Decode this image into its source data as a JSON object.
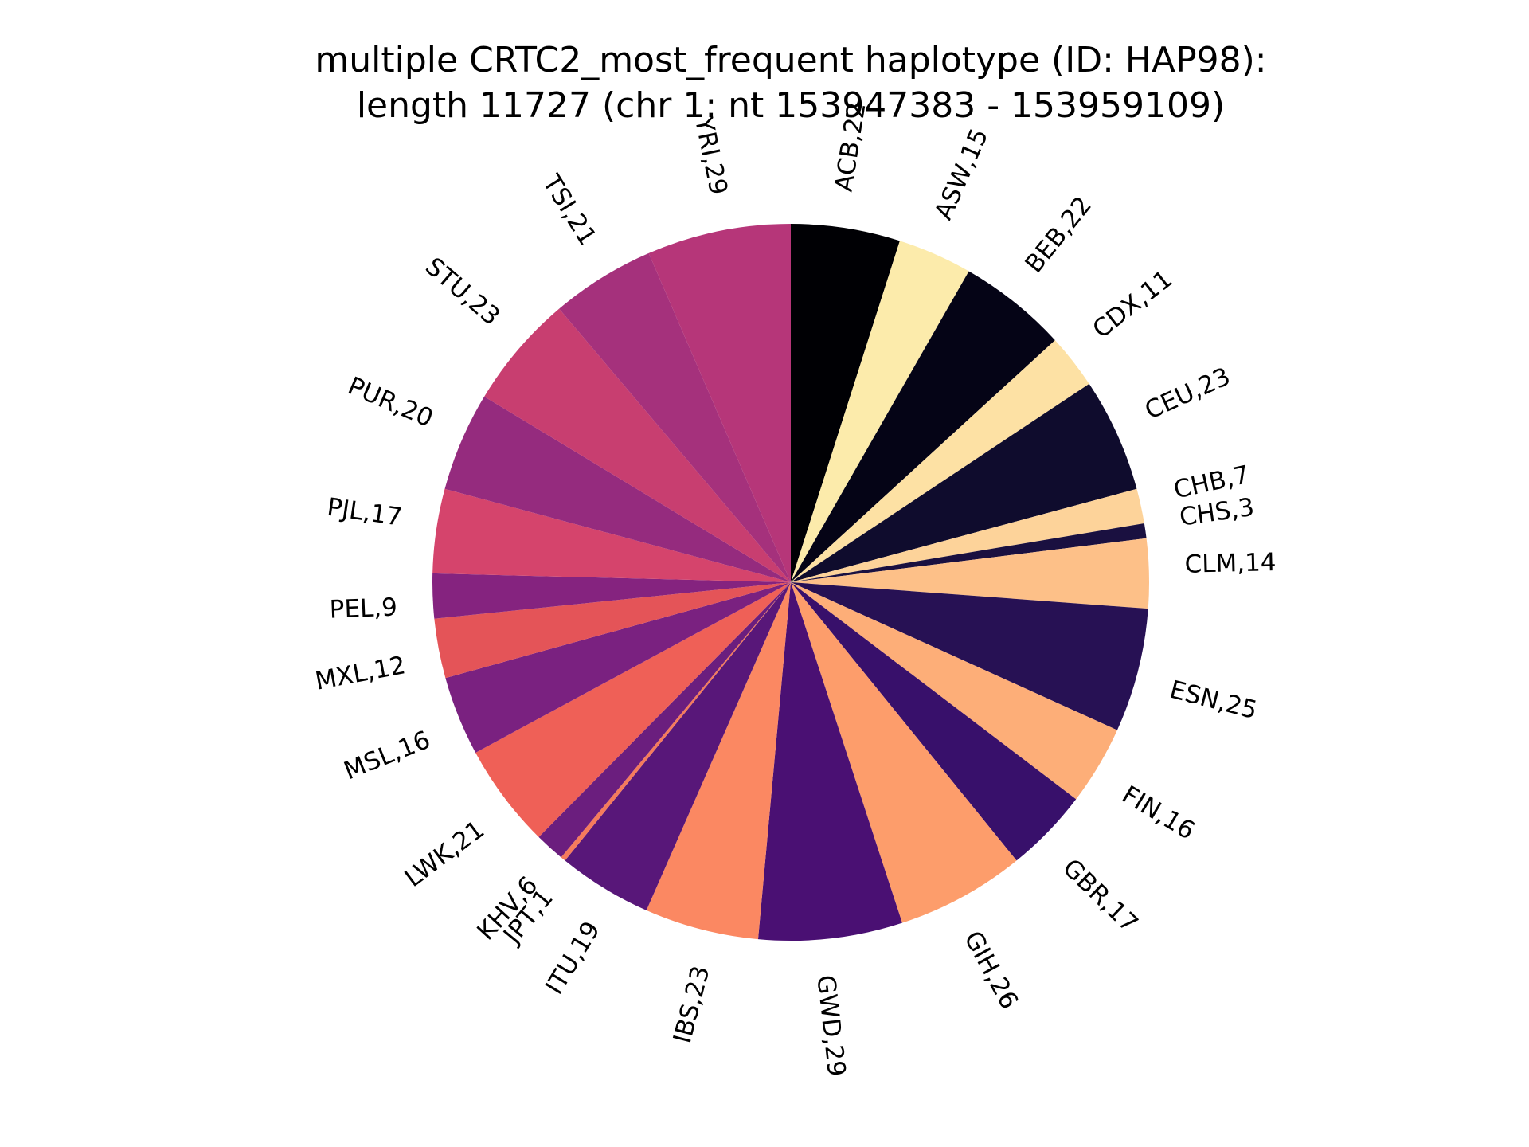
{
  "chart_data": {
    "type": "pie",
    "title": "multiple CRTC2_most_frequent haplotype (ID: HAP98):",
    "subtitle": "length 11727 (chr 1: nt 153947383 - 153959109)",
    "start": "top",
    "direction": "clockwise",
    "slices": [
      {
        "label": "ACB,22",
        "value": 22,
        "color": "#000004"
      },
      {
        "label": "ASW,15",
        "value": 15,
        "color": "#fcebab"
      },
      {
        "label": "BEB,22",
        "value": 22,
        "color": "#050416"
      },
      {
        "label": "CDX,11",
        "value": 11,
        "color": "#fde1a4"
      },
      {
        "label": "CEU,23",
        "value": 23,
        "color": "#0f0c2d"
      },
      {
        "label": "CHB,7",
        "value": 7,
        "color": "#fdd39a"
      },
      {
        "label": "CHS,3",
        "value": 3,
        "color": "#1a1040"
      },
      {
        "label": "CLM,14",
        "value": 14,
        "color": "#fdc088"
      },
      {
        "label": "ESN,25",
        "value": 25,
        "color": "#271154"
      },
      {
        "label": "FIN,16",
        "value": 16,
        "color": "#fdae78"
      },
      {
        "label": "GBR,17",
        "value": 17,
        "color": "#38106b"
      },
      {
        "label": "GIH,26",
        "value": 26,
        "color": "#fd9d6b"
      },
      {
        "label": "GWD,29",
        "value": 29,
        "color": "#4a1073"
      },
      {
        "label": "IBS,23",
        "value": 23,
        "color": "#fb8862"
      },
      {
        "label": "ITU,19",
        "value": 19,
        "color": "#581779"
      },
      {
        "label": "JPT,1",
        "value": 1,
        "color": "#f57b5c"
      },
      {
        "label": "KHV,6",
        "value": 6,
        "color": "#6b1e7e"
      },
      {
        "label": "LWK,21",
        "value": 21,
        "color": "#ef6057"
      },
      {
        "label": "MSL,16",
        "value": 16,
        "color": "#7a2180"
      },
      {
        "label": "MXL,12",
        "value": 12,
        "color": "#e45458"
      },
      {
        "label": "PEL,9",
        "value": 9,
        "color": "#85237f"
      },
      {
        "label": "PJL,17",
        "value": 17,
        "color": "#d5446c"
      },
      {
        "label": "PUR,20",
        "value": 20,
        "color": "#952b7e"
      },
      {
        "label": "STU,23",
        "value": 23,
        "color": "#c83e70"
      },
      {
        "label": "TSI,21",
        "value": 21,
        "color": "#a5317c"
      },
      {
        "label": "YRI,29",
        "value": 29,
        "color": "#b63679"
      }
    ]
  }
}
